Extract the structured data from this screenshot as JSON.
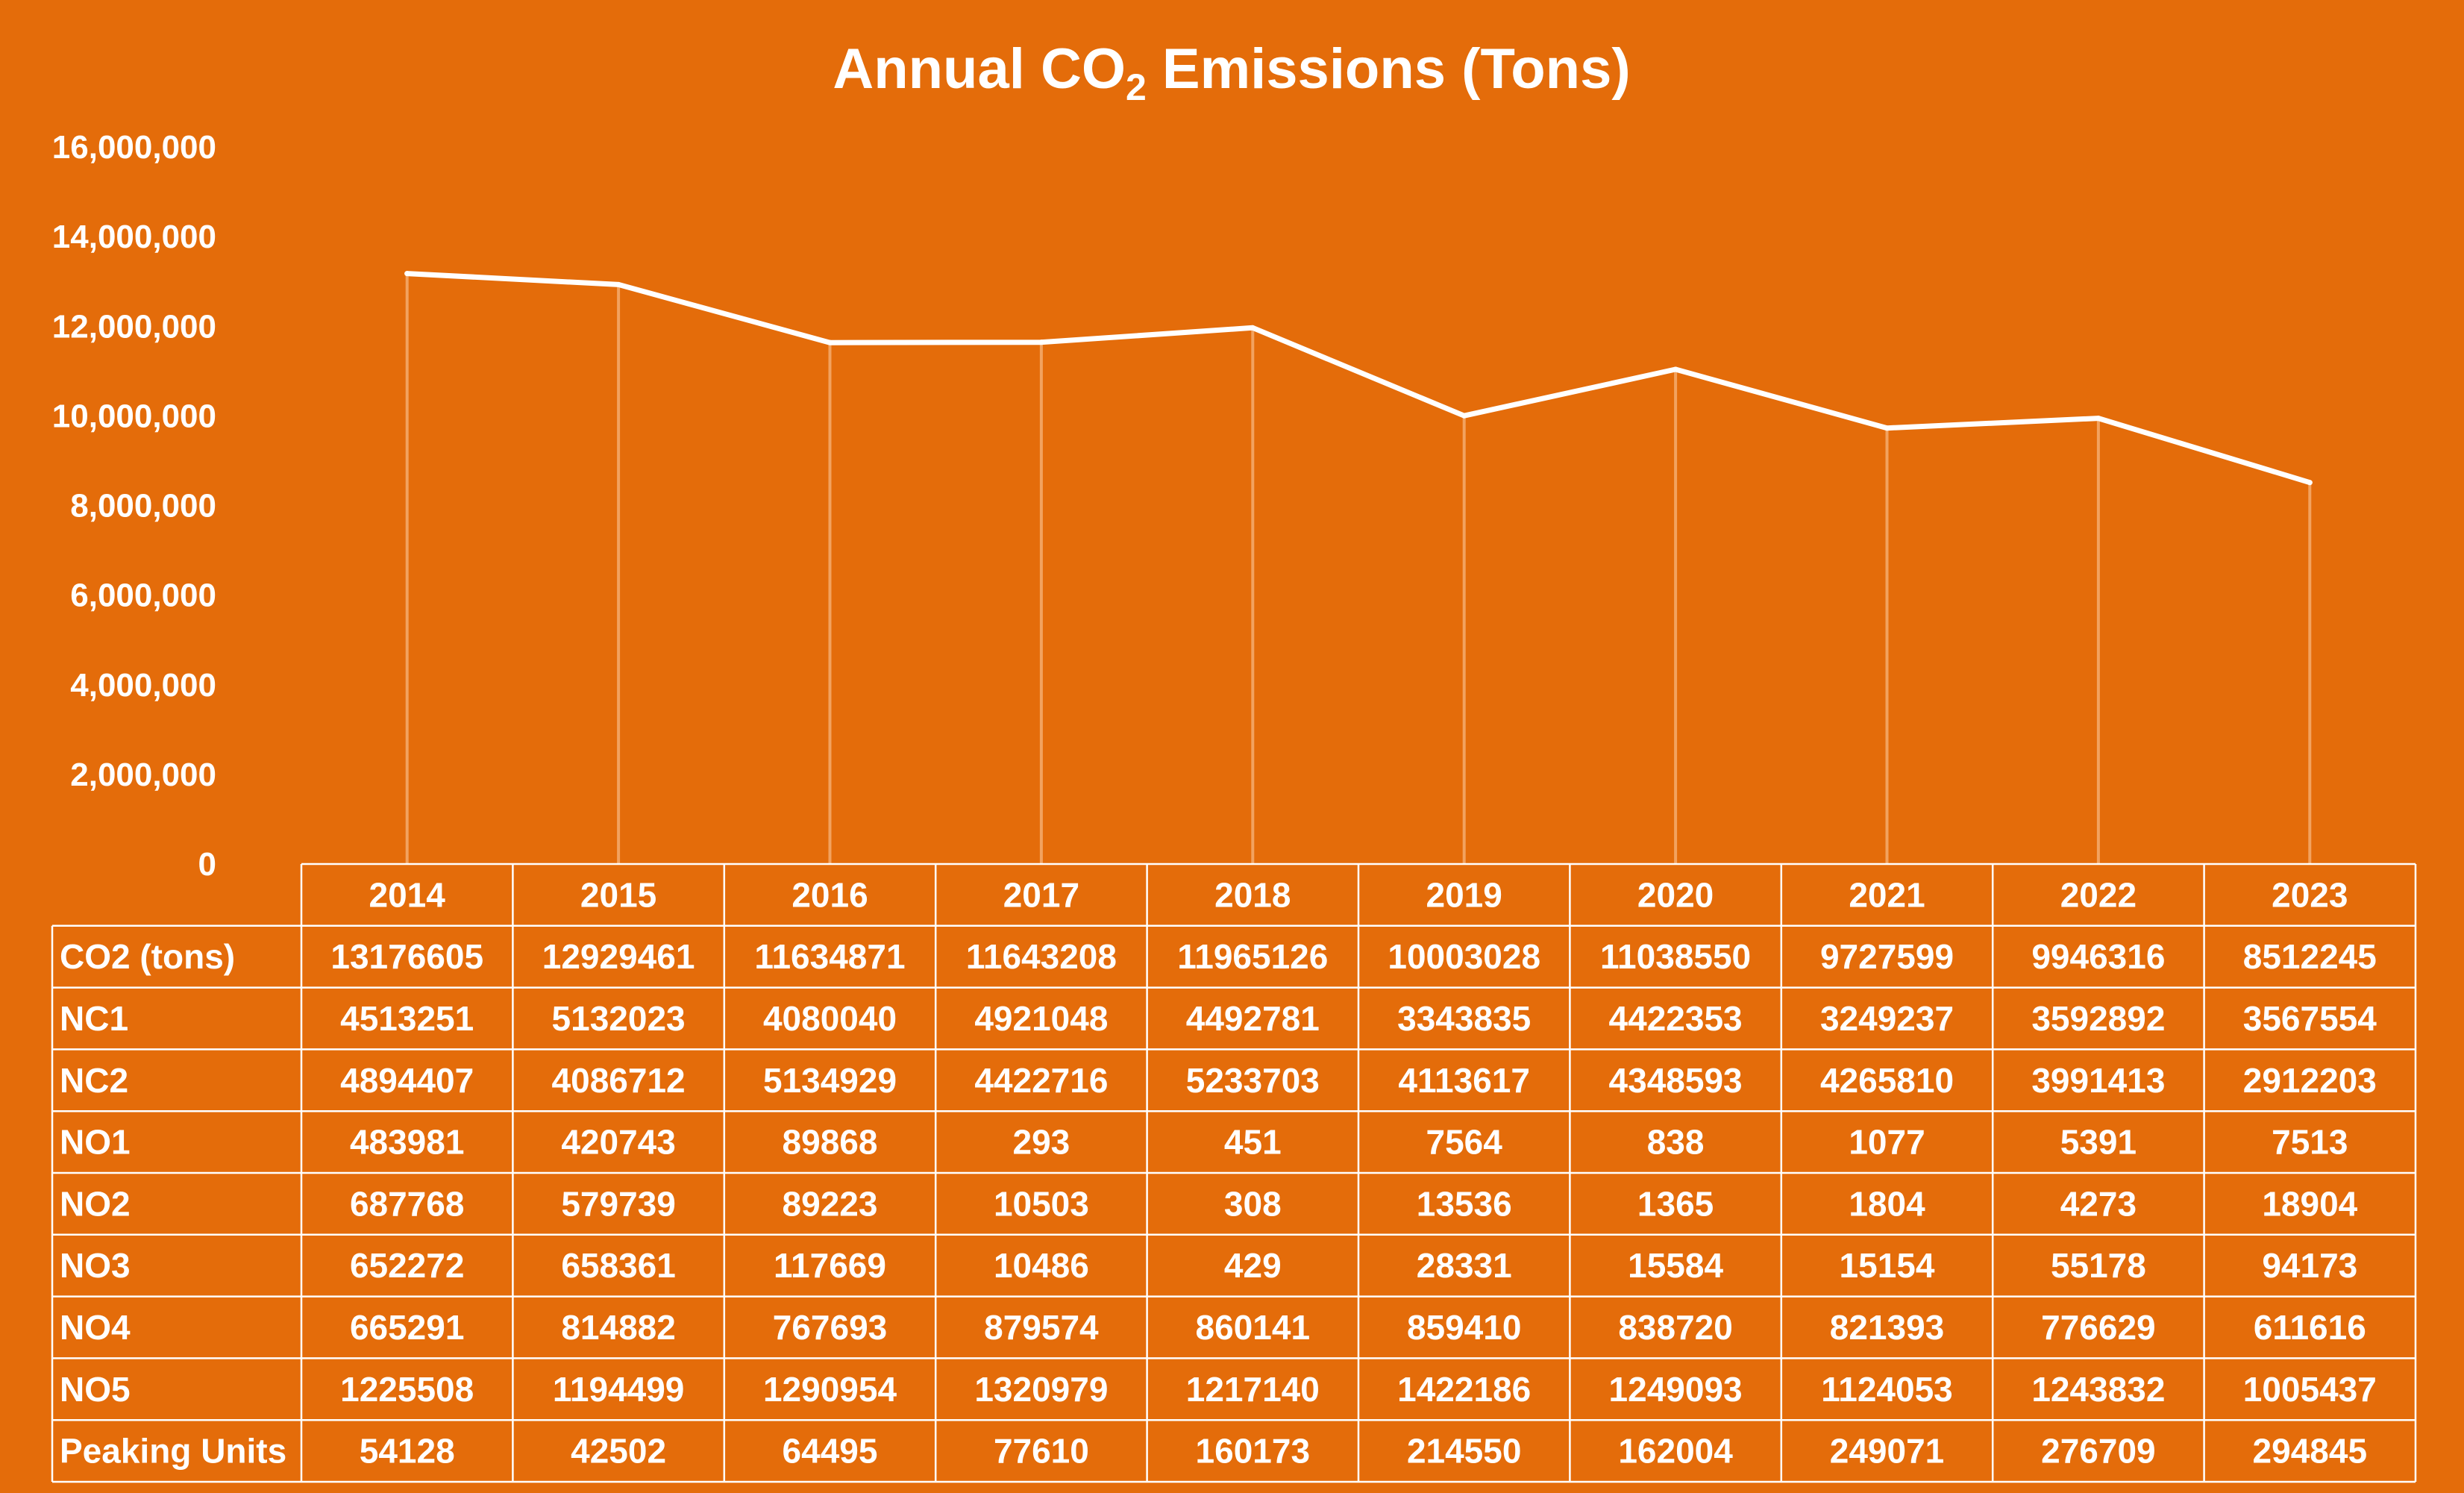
{
  "chart_data": {
    "type": "line",
    "title": "Annual CO",
    "title_subscript": "2",
    "title_suffix": " Emissions (Tons)",
    "xlabel": "",
    "ylabel": "",
    "ylim": [
      0,
      16000000
    ],
    "yticks": [
      0,
      2000000,
      4000000,
      6000000,
      8000000,
      10000000,
      12000000,
      14000000,
      16000000
    ],
    "ytick_labels": [
      "0",
      "2,000,000",
      "4,000,000",
      "6,000,000",
      "8,000,000",
      "10,000,000",
      "12,000,000",
      "14,000,000",
      "16,000,000"
    ],
    "grid": false,
    "drop_lines": true,
    "legend": "none",
    "categories": [
      "2014",
      "2015",
      "2016",
      "2017",
      "2018",
      "2019",
      "2020",
      "2021",
      "2022",
      "2023"
    ],
    "series": [
      {
        "values": [
          13176605,
          12929461,
          11634871,
          11643208,
          11965126,
          10003028,
          11038550,
          9727599,
          9946316,
          8512245
        ]
      }
    ],
    "data_table": {
      "rows": [
        {
          "label": "CO2 (tons)",
          "values": [
            13176605,
            12929461,
            11634871,
            11643208,
            11965126,
            10003028,
            11038550,
            9727599,
            9946316,
            8512245
          ]
        },
        {
          "label": "NC1",
          "values": [
            4513251,
            5132023,
            4080040,
            4921048,
            4492781,
            3343835,
            4422353,
            3249237,
            3592892,
            3567554
          ]
        },
        {
          "label": "NC2",
          "values": [
            4894407,
            4086712,
            5134929,
            4422716,
            5233703,
            4113617,
            4348593,
            4265810,
            3991413,
            2912203
          ]
        },
        {
          "label": "NO1",
          "values": [
            483981,
            420743,
            89868,
            293,
            451,
            7564,
            838,
            1077,
            5391,
            7513
          ]
        },
        {
          "label": "NO2",
          "values": [
            687768,
            579739,
            89223,
            10503,
            308,
            13536,
            1365,
            1804,
            4273,
            18904
          ]
        },
        {
          "label": "NO3",
          "values": [
            652272,
            658361,
            117669,
            10486,
            429,
            28331,
            15584,
            15154,
            55178,
            94173
          ]
        },
        {
          "label": "NO4",
          "values": [
            665291,
            814882,
            767693,
            879574,
            860141,
            859410,
            838720,
            821393,
            776629,
            611616
          ]
        },
        {
          "label": "NO5",
          "values": [
            1225508,
            1194499,
            1290954,
            1320979,
            1217140,
            1422186,
            1249093,
            1124053,
            1243832,
            1005437
          ]
        },
        {
          "label": "Peaking Units",
          "values": [
            54128,
            42502,
            64495,
            77610,
            160173,
            214550,
            162004,
            249071,
            276709,
            294845
          ]
        }
      ]
    }
  },
  "colors": {
    "background": "#e46c0a",
    "line": "#ffffff",
    "drop_line": "#f2a25f",
    "table_border": "#ffffff",
    "text": "#ffffff"
  }
}
